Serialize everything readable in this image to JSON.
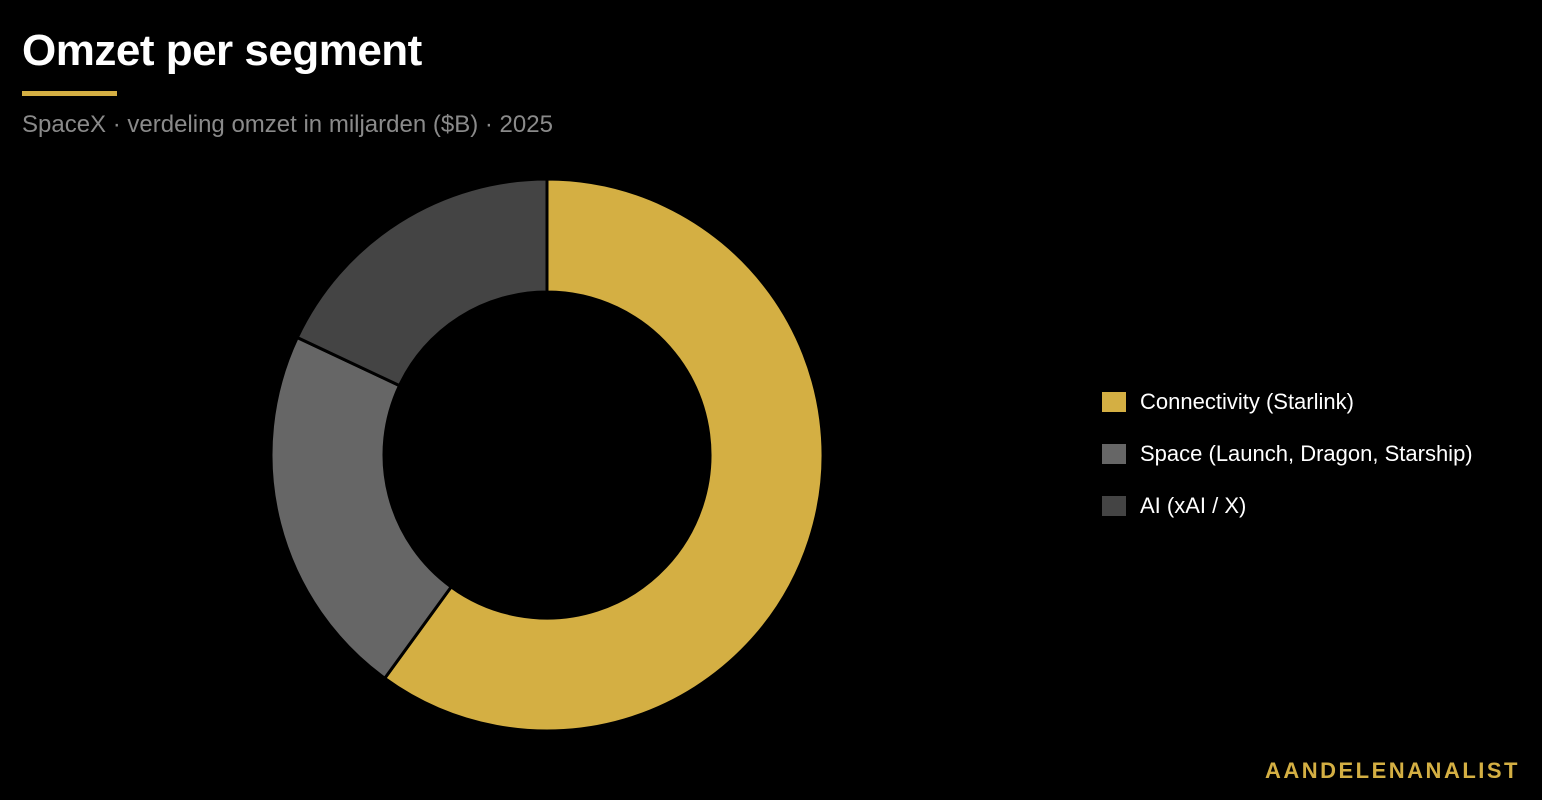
{
  "header": {
    "title": "Omzet per segment",
    "subtitle": "SpaceX · verdeling omzet in miljarden ($B) · 2025"
  },
  "colors": {
    "background": "#000000",
    "accent": "#d4af43"
  },
  "brand": {
    "text": "AANDELENANALIST"
  },
  "chart_data": {
    "type": "pie",
    "donut": true,
    "start_angle_deg": 0,
    "direction": "clockwise",
    "legend_position": "right",
    "categories": [
      "Connectivity (Starlink)",
      "Space (Launch, Dragon, Starship)",
      "AI (xAI / X)"
    ],
    "values": [
      60,
      22,
      18
    ],
    "colors": [
      "#d4af43",
      "#666666",
      "#444444"
    ]
  }
}
